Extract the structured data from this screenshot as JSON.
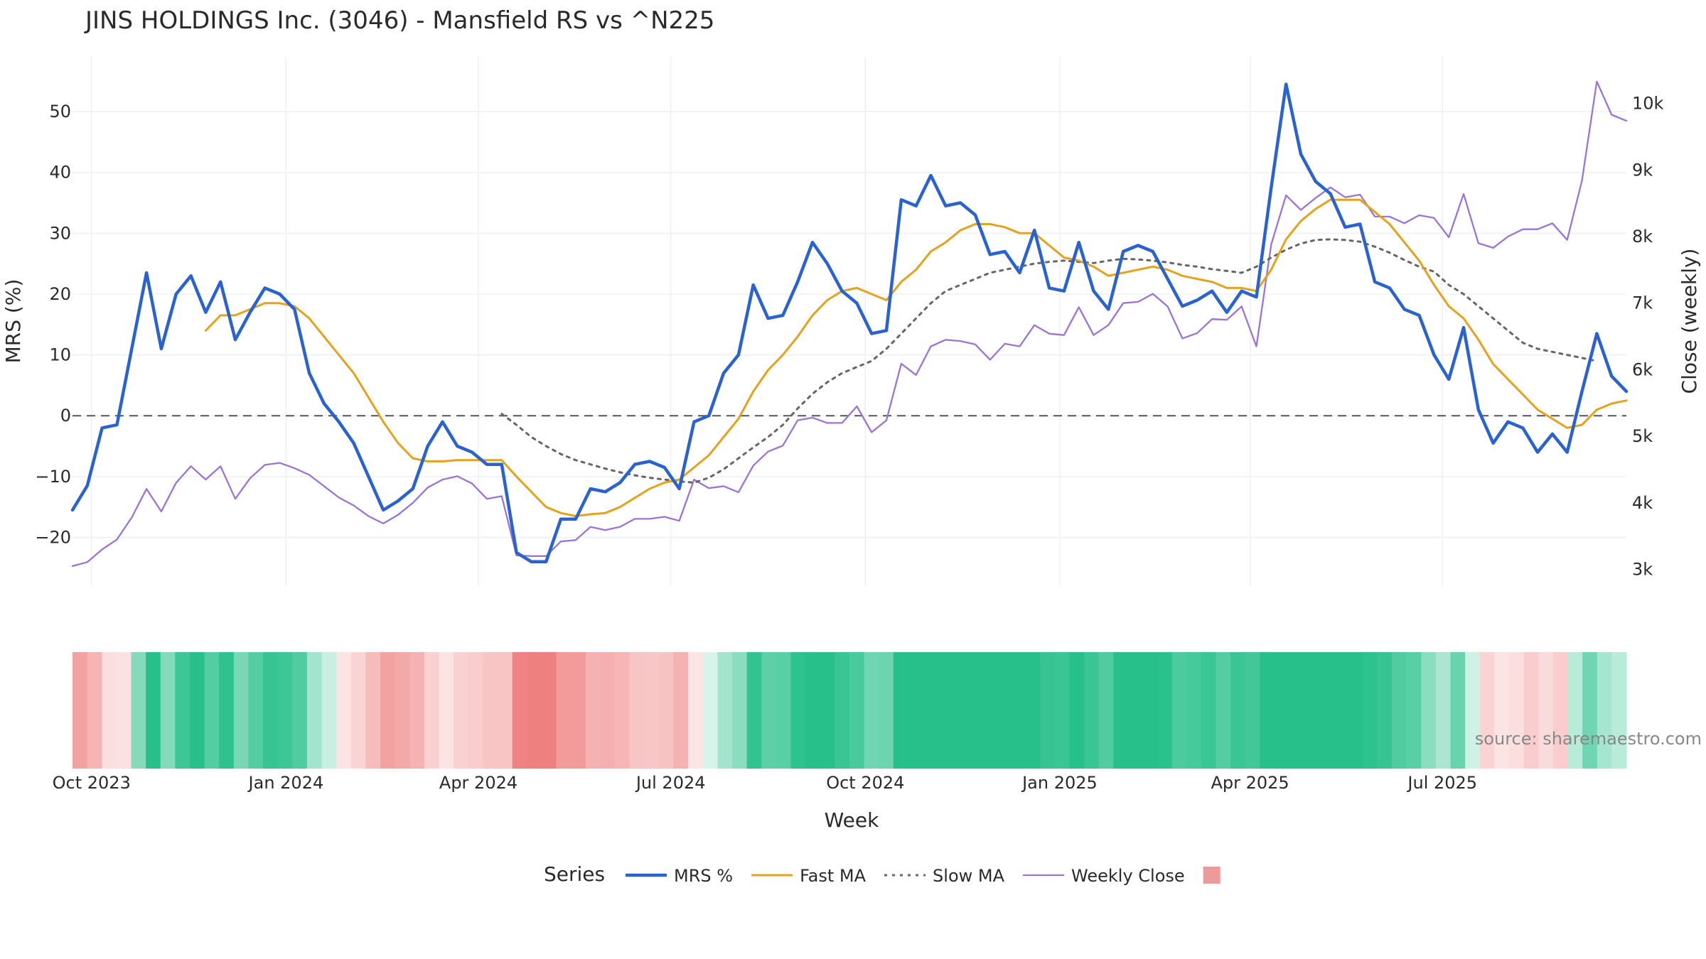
{
  "chart_data": {
    "type": "line",
    "title": "JINS HOLDINGS Inc. (3046) - Mansfield RS vs ^N225",
    "xlabel": "Week",
    "ylabel_left": "MRS (%)",
    "ylabel_right": "Close (weekly)",
    "ylim_left": [
      -28,
      59
    ],
    "ylim_right": [
      2750,
      10700
    ],
    "yticks_left": [
      -20,
      -10,
      0,
      10,
      20,
      30,
      40,
      50
    ],
    "yticks_left_labels": [
      "−20",
      "−10",
      "0",
      "10",
      "20",
      "30",
      "40",
      "50"
    ],
    "yticks_right": [
      3000,
      4000,
      5000,
      6000,
      7000,
      8000,
      9000,
      10000
    ],
    "yticks_right_labels": [
      "3k",
      "4k",
      "5k",
      "6k",
      "7k",
      "8k",
      "9k",
      "10k"
    ],
    "xticks": [
      "Oct 2023",
      "Jan 2024",
      "Apr 2024",
      "Jul 2024",
      "Oct 2024",
      "Jan 2025",
      "Apr 2025",
      "Jul 2025"
    ],
    "x_start": "2023-09-22",
    "x_step_days": 7,
    "zero_line": 0,
    "grid": true,
    "legend_position": "bottom",
    "legend_title": "Series",
    "watermark": "source: sharemaestro.com",
    "colors": {
      "mrs": "#2a63d0",
      "fast": "#e5a21c",
      "slow": "#666666",
      "close": "#9a74d6",
      "heat_pos": "#27c08a",
      "heat_neg": "#ef8080"
    },
    "series": [
      {
        "name": "MRS %",
        "axis": "left",
        "style": "solid-thick",
        "values": [
          -15.5,
          -11.5,
          -2,
          -1.5,
          11,
          23.5,
          11,
          20,
          23,
          17,
          22,
          12.5,
          17,
          21,
          20,
          17.5,
          7,
          2,
          -1,
          -4.5,
          -10,
          -15.5,
          -14,
          -12,
          -5,
          -1,
          -5,
          -6,
          -8,
          -8,
          -22.5,
          -24,
          -24,
          -17,
          -17,
          -12,
          -12.5,
          -11,
          -8,
          -7.5,
          -8.5,
          -12,
          -1,
          0,
          7,
          10,
          21.5,
          16,
          16.5,
          22,
          28.5,
          25,
          20.5,
          18.5,
          13.5,
          14,
          35.5,
          34.5,
          39.5,
          34.5,
          35,
          33,
          26.5,
          27,
          23.5,
          30.5,
          21,
          20.5,
          28.5,
          20.5,
          17.5,
          27,
          28,
          27,
          22.5,
          18,
          19,
          20.5,
          17,
          20.5,
          19.5,
          37.5,
          54.5,
          43,
          38.5,
          36.5,
          31,
          31.5,
          22,
          21,
          17.5,
          16.5,
          10,
          6,
          14.5,
          1,
          -4.5,
          -1,
          -2,
          -6,
          -3,
          -6,
          4,
          13.5,
          6.5,
          4
        ]
      },
      {
        "name": "Fast MA",
        "axis": "left",
        "style": "solid",
        "values": [
          null,
          null,
          null,
          null,
          null,
          null,
          null,
          null,
          null,
          14,
          16.5,
          16.5,
          17.5,
          18.5,
          18.5,
          18,
          16,
          13,
          10,
          7,
          3,
          -1,
          -4.5,
          -7,
          -7.5,
          -7.5,
          -7.3,
          -7.3,
          -7.3,
          -7.3,
          -10,
          -12.5,
          -15,
          -16,
          -16.5,
          -16.2,
          -16,
          -15,
          -13.5,
          -12,
          -11,
          -10.5,
          -8.5,
          -6.5,
          -3.5,
          -0.5,
          4,
          7.5,
          10,
          13,
          16.5,
          19,
          20.5,
          21,
          20,
          19,
          22,
          24,
          27,
          28.5,
          30.5,
          31.5,
          31.5,
          31,
          30,
          30,
          28,
          26,
          25.5,
          24.5,
          23,
          23.5,
          24,
          24.5,
          24,
          23,
          22.5,
          22,
          21,
          21,
          20.5,
          24,
          29,
          32,
          34,
          35.5,
          35.5,
          35.5,
          33.5,
          31.5,
          28.5,
          25.5,
          21.5,
          18,
          16,
          12.5,
          8.5,
          6,
          3.5,
          1,
          -0.5,
          -2,
          -1.5,
          1,
          2,
          2.5
        ]
      },
      {
        "name": "Slow MA",
        "axis": "left",
        "style": "dotted",
        "values": [
          null,
          null,
          null,
          null,
          null,
          null,
          null,
          null,
          null,
          null,
          null,
          null,
          null,
          null,
          null,
          null,
          null,
          null,
          null,
          null,
          null,
          null,
          null,
          null,
          null,
          null,
          null,
          null,
          null,
          0.3,
          -1.5,
          -3.5,
          -5,
          -6.3,
          -7.3,
          -8,
          -8.7,
          -9.3,
          -9.8,
          -10.2,
          -10.5,
          -10.8,
          -11,
          -10.2,
          -8.8,
          -7,
          -5.2,
          -3.5,
          -1.5,
          1.2,
          3.6,
          5.5,
          7,
          8,
          9,
          11,
          13.5,
          16,
          18.5,
          20.5,
          21.5,
          22.5,
          23.5,
          24,
          24.5,
          25,
          25.3,
          25.5,
          25.3,
          25.1,
          25.5,
          25.8,
          25.7,
          25.5,
          25.2,
          24.8,
          24.5,
          24.1,
          23.8,
          23.5,
          24.5,
          26,
          27.3,
          28.3,
          28.9,
          29,
          28.9,
          28.6,
          27.8,
          26.8,
          25.6,
          24.5,
          23.7,
          21.5,
          20,
          18,
          16,
          14,
          12,
          11,
          10.5,
          10,
          9.5,
          9
        ]
      },
      {
        "name": "Weekly Close",
        "axis": "right",
        "style": "solid-thin",
        "values": [
          3050,
          3110,
          3300,
          3450,
          3780,
          4210,
          3870,
          4300,
          4550,
          4350,
          4550,
          4060,
          4370,
          4570,
          4600,
          4520,
          4420,
          4250,
          4080,
          3960,
          3800,
          3690,
          3820,
          4000,
          4230,
          4350,
          4400,
          4290,
          4060,
          4100,
          3210,
          3200,
          3200,
          3420,
          3440,
          3640,
          3590,
          3640,
          3760,
          3760,
          3790,
          3730,
          4350,
          4220,
          4250,
          4160,
          4560,
          4770,
          4860,
          5240,
          5280,
          5200,
          5200,
          5450,
          5060,
          5240,
          6090,
          5920,
          6350,
          6450,
          6430,
          6380,
          6150,
          6390,
          6350,
          6670,
          6540,
          6520,
          6940,
          6520,
          6670,
          7000,
          7020,
          7140,
          6950,
          6470,
          6550,
          6760,
          6750,
          6950,
          6350,
          7880,
          8620,
          8400,
          8580,
          8740,
          8590,
          8630,
          8300,
          8300,
          8200,
          8320,
          8280,
          7990,
          8640,
          7900,
          7830,
          8000,
          8110,
          8110,
          8200,
          7950,
          8840,
          10330,
          9830,
          9740
        ]
      },
      {
        "name": "",
        "style": "swatch",
        "color": "#ef9a9a"
      }
    ]
  }
}
